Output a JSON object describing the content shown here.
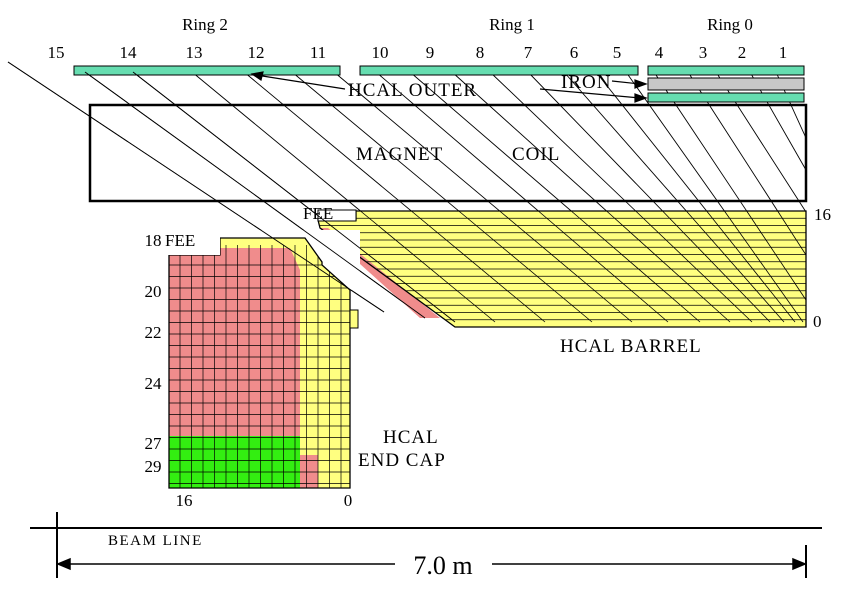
{
  "rings": [
    {
      "label": "Ring 2"
    },
    {
      "label": "Ring 1"
    },
    {
      "label": "Ring 0"
    }
  ],
  "tower_numbers": [
    "15",
    "14",
    "13",
    "12",
    "11",
    "10",
    "9",
    "8",
    "7",
    "6",
    "5",
    "4",
    "3",
    "2",
    "1"
  ],
  "labels": {
    "hcal_outer": "HCAL OUTER",
    "iron": "IRON",
    "magnet": "MAGNET",
    "coil": "COIL",
    "fee_barrel": "FEE",
    "fee_endcap": "FEE",
    "barrel_top": "16",
    "barrel_bottom": "0",
    "hcal_barrel": "HCAL BARREL",
    "hcal": "HCAL",
    "end_cap": "END CAP",
    "endcap_side": [
      "18",
      "20",
      "22",
      "24",
      "27",
      "29"
    ],
    "endcap_bottom_left": "16",
    "endcap_bottom_right": "0",
    "beam_line": "BEAM LINE",
    "length": "7.0 m"
  },
  "colors": {
    "scintillator_yellow": "#ffff80",
    "inner_pink": "#f08c8c",
    "green": "#33ee11",
    "outer_teal": "#66ddb0",
    "iron_gray": "#c8c8c8",
    "line": "#000000"
  }
}
